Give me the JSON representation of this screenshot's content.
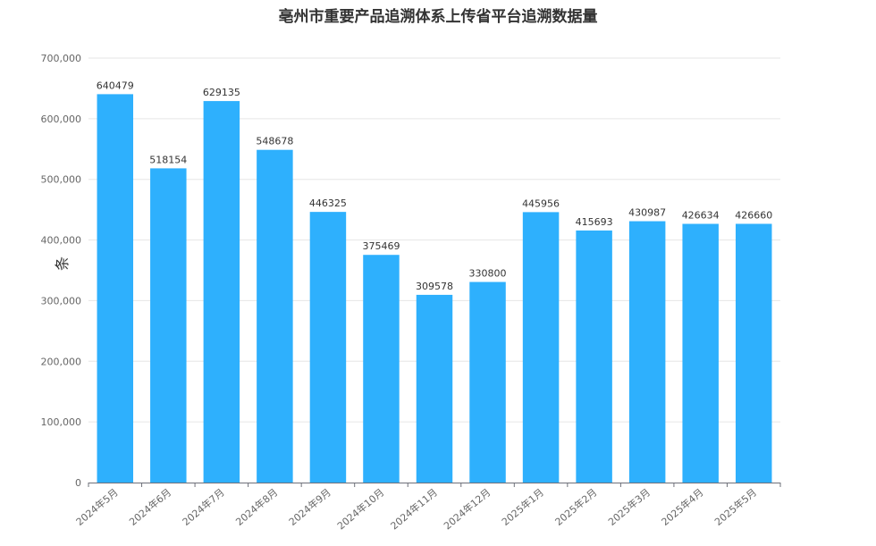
{
  "chart_data": {
    "type": "bar",
    "title": "亳州市重要产品追溯体系上传省平台追溯数据量",
    "ylabel": "条",
    "xlabel": "",
    "ylim": [
      0,
      700000
    ],
    "yticks": [
      "0",
      "100,000",
      "200,000",
      "300,000",
      "400,000",
      "500,000",
      "600,000",
      "700,000"
    ],
    "categories": [
      "2024年5月",
      "2024年6月",
      "2024年7月",
      "2024年8月",
      "2024年9月",
      "2024年10月",
      "2024年11月",
      "2024年12月",
      "2025年1月",
      "2025年2月",
      "2025年3月",
      "2025年4月",
      "2025年5月"
    ],
    "values": [
      640479,
      518154,
      629135,
      548678,
      446325,
      375469,
      309578,
      330800,
      445956,
      415693,
      430987,
      426634,
      426660
    ],
    "bar_color": "#2eb0fd",
    "grid": true
  }
}
